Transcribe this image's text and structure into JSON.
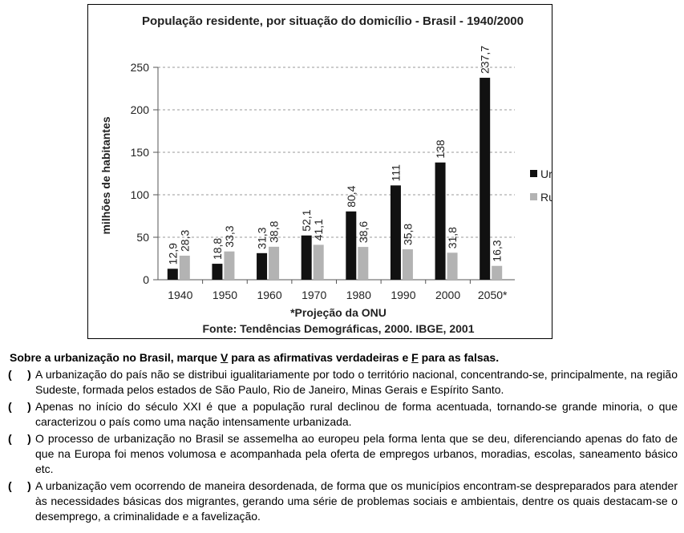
{
  "chart_data": {
    "type": "bar",
    "title": "População residente, por situação do domicílio - Brasil - 1940/2000",
    "ylabel": "milhões de habitantes",
    "xlabel": "",
    "categories": [
      "1940",
      "1950",
      "1960",
      "1970",
      "1980",
      "1990",
      "2000",
      "2050*"
    ],
    "series": [
      {
        "name": "Urbana",
        "values": [
          12.9,
          18.8,
          31.3,
          52.1,
          80.4,
          111,
          138,
          237.7
        ],
        "labels": [
          "12,9",
          "18,8",
          "31,3",
          "52,1",
          "80,4",
          "111",
          "138",
          "237,7"
        ],
        "color": "#111111"
      },
      {
        "name": "Rural",
        "values": [
          28.3,
          33.3,
          38.8,
          41.1,
          38.6,
          35.8,
          31.8,
          16.3
        ],
        "labels": [
          "28,3",
          "33,3",
          "38,8",
          "41,1",
          "38,6",
          "35,8",
          "31,8",
          "16,3"
        ],
        "color": "#b3b3b3"
      }
    ],
    "ylim": [
      0,
      250
    ],
    "yticks": [
      0,
      50,
      100,
      150,
      200,
      250
    ],
    "grid": true,
    "legend": "right",
    "footnote": "*Projeção da ONU",
    "source": "Fonte: Tendências Demográficas, 2000. IBGE, 2001"
  },
  "question": {
    "prompt_before_v": "Sobre a urbanização no Brasil, marque ",
    "v_letter": "V",
    "prompt_middle": " para as afirmativas verdadeiras e ",
    "f_letter": "F",
    "prompt_after_f": " para as falsas.",
    "checkbox": "(     )",
    "items": [
      "A urbanização do país não se distribui igualitariamente por todo o território nacional, concentrando-se, principalmente, na região Sudeste, formada pelos estados de São Paulo, Rio de Janeiro, Minas Gerais e Espírito Santo.",
      "Apenas no início do século XXI é que a população rural declinou de forma acentuada, tornando-se grande minoria, o que caracterizou o país como uma nação intensamente urbanizada.",
      "O processo de urbanização no Brasil se assemelha ao europeu pela forma lenta que se deu, diferenciando apenas do fato de que na Europa foi menos volumosa e acompanhada pela oferta de empregos urbanos, moradias, escolas, saneamento básico etc.",
      "A urbanização vem ocorrendo de maneira desordenada, de forma que os municípios encontram-se despreparados para atender às necessidades básicas dos migrantes, gerando uma série de problemas sociais e ambientais, dentre os quais destacam-se o desemprego, a criminalidade e a favelização."
    ]
  }
}
